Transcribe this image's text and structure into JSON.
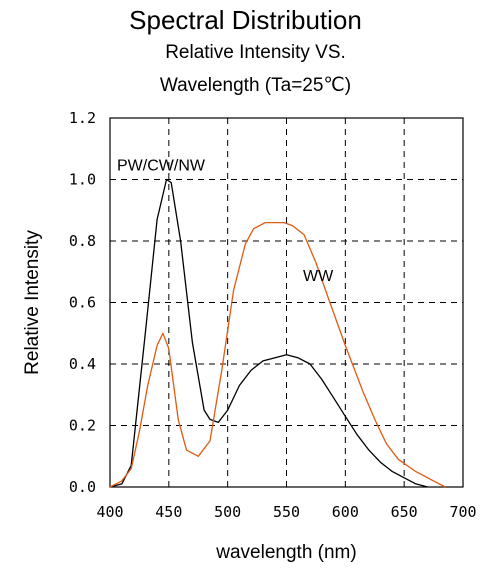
{
  "chart_data": {
    "type": "line",
    "title": "Spectral Distribution",
    "subtitle_lines": [
      "Relative Intensity VS.",
      "Wavelength (Ta=25℃)"
    ],
    "xlabel": "wavelength (nm)",
    "ylabel": "Relative Intensity",
    "xlim": [
      400,
      700
    ],
    "ylim": [
      0,
      1.2
    ],
    "x_ticks": [
      "400",
      "450",
      "500",
      "550",
      "600",
      "650",
      "700"
    ],
    "y_ticks": [
      "0.0",
      "0.2",
      "0.4",
      "0.6",
      "0.8",
      "1.0",
      "1.2"
    ],
    "grid": true,
    "series": [
      {
        "label": "PW/CW/NW",
        "color": "#000000",
        "points": [
          [
            400,
            0
          ],
          [
            410,
            0.01
          ],
          [
            418,
            0.07
          ],
          [
            430,
            0.5
          ],
          [
            440,
            0.87
          ],
          [
            448,
            1.0
          ],
          [
            452,
            0.99
          ],
          [
            460,
            0.8
          ],
          [
            470,
            0.47
          ],
          [
            480,
            0.25
          ],
          [
            485,
            0.22
          ],
          [
            492,
            0.21
          ],
          [
            500,
            0.25
          ],
          [
            510,
            0.33
          ],
          [
            520,
            0.38
          ],
          [
            530,
            0.41
          ],
          [
            540,
            0.42
          ],
          [
            550,
            0.43
          ],
          [
            560,
            0.42
          ],
          [
            570,
            0.4
          ],
          [
            580,
            0.35
          ],
          [
            590,
            0.29
          ],
          [
            600,
            0.23
          ],
          [
            610,
            0.17
          ],
          [
            620,
            0.12
          ],
          [
            630,
            0.08
          ],
          [
            640,
            0.05
          ],
          [
            650,
            0.03
          ],
          [
            660,
            0.01
          ],
          [
            670,
            0
          ]
        ]
      },
      {
        "label": "WW",
        "color": "#e05a10",
        "points": [
          [
            400,
            0
          ],
          [
            410,
            0.02
          ],
          [
            418,
            0.06
          ],
          [
            425,
            0.18
          ],
          [
            432,
            0.33
          ],
          [
            440,
            0.46
          ],
          [
            445,
            0.5
          ],
          [
            450,
            0.45
          ],
          [
            458,
            0.22
          ],
          [
            465,
            0.12
          ],
          [
            475,
            0.1
          ],
          [
            485,
            0.15
          ],
          [
            495,
            0.38
          ],
          [
            505,
            0.64
          ],
          [
            515,
            0.79
          ],
          [
            522,
            0.84
          ],
          [
            532,
            0.86
          ],
          [
            540,
            0.86
          ],
          [
            548,
            0.86
          ],
          [
            555,
            0.85
          ],
          [
            565,
            0.82
          ],
          [
            575,
            0.73
          ],
          [
            585,
            0.62
          ],
          [
            600,
            0.46
          ],
          [
            615,
            0.31
          ],
          [
            625,
            0.22
          ],
          [
            635,
            0.14
          ],
          [
            645,
            0.09
          ],
          [
            660,
            0.05
          ],
          [
            675,
            0.02
          ],
          [
            685,
            0
          ]
        ]
      }
    ]
  }
}
